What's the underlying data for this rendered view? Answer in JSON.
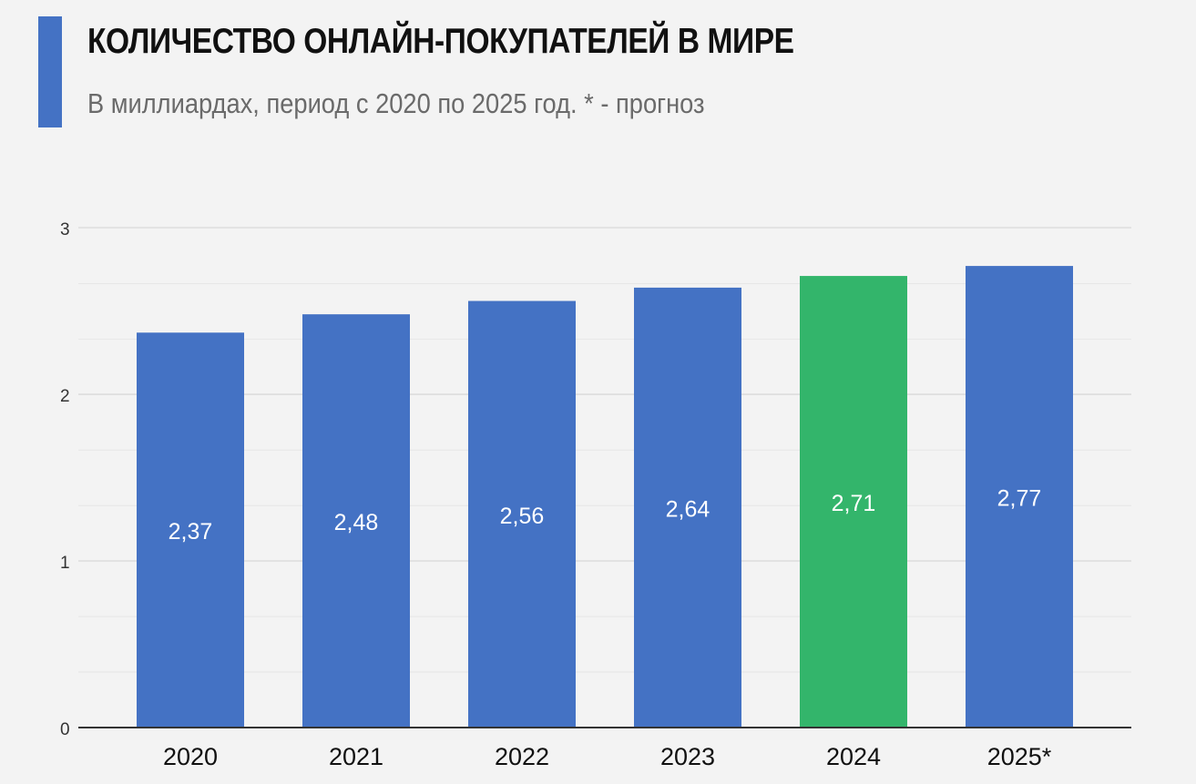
{
  "header": {
    "title": "КОЛИЧЕСТВО ОНЛАЙН-ПОКУПАТЕЛЕЙ В МИРЕ",
    "subtitle": "В миллиардах, период с 2020 по 2025 год. * - прогноз",
    "accent_color": "#4472c4"
  },
  "chart_data": {
    "type": "bar",
    "title": "КОЛИЧЕСТВО ОНЛАЙН-ПОКУПАТЕЛЕЙ В МИРЕ",
    "subtitle": "В миллиардах, период с 2020 по 2025 год. * - прогноз",
    "categories": [
      "2020",
      "2021",
      "2022",
      "2023",
      "2024",
      "2025*"
    ],
    "values": [
      2.37,
      2.48,
      2.56,
      2.64,
      2.71,
      2.77
    ],
    "value_labels": [
      "2,37",
      "2,48",
      "2,56",
      "2,64",
      "2,71",
      "2,77"
    ],
    "highlight_index": 4,
    "colors": {
      "bar": "#4472c4",
      "highlight": "#33b56b",
      "grid": "#d9d9d9",
      "axis": "#333333",
      "label": "#ffffff"
    },
    "yticks": [
      0,
      1,
      2,
      3
    ],
    "ylim": [
      0,
      3
    ],
    "minor_grid_step": 0.333,
    "xlabel": "",
    "ylabel": "",
    "grid": true,
    "legend": "none"
  }
}
